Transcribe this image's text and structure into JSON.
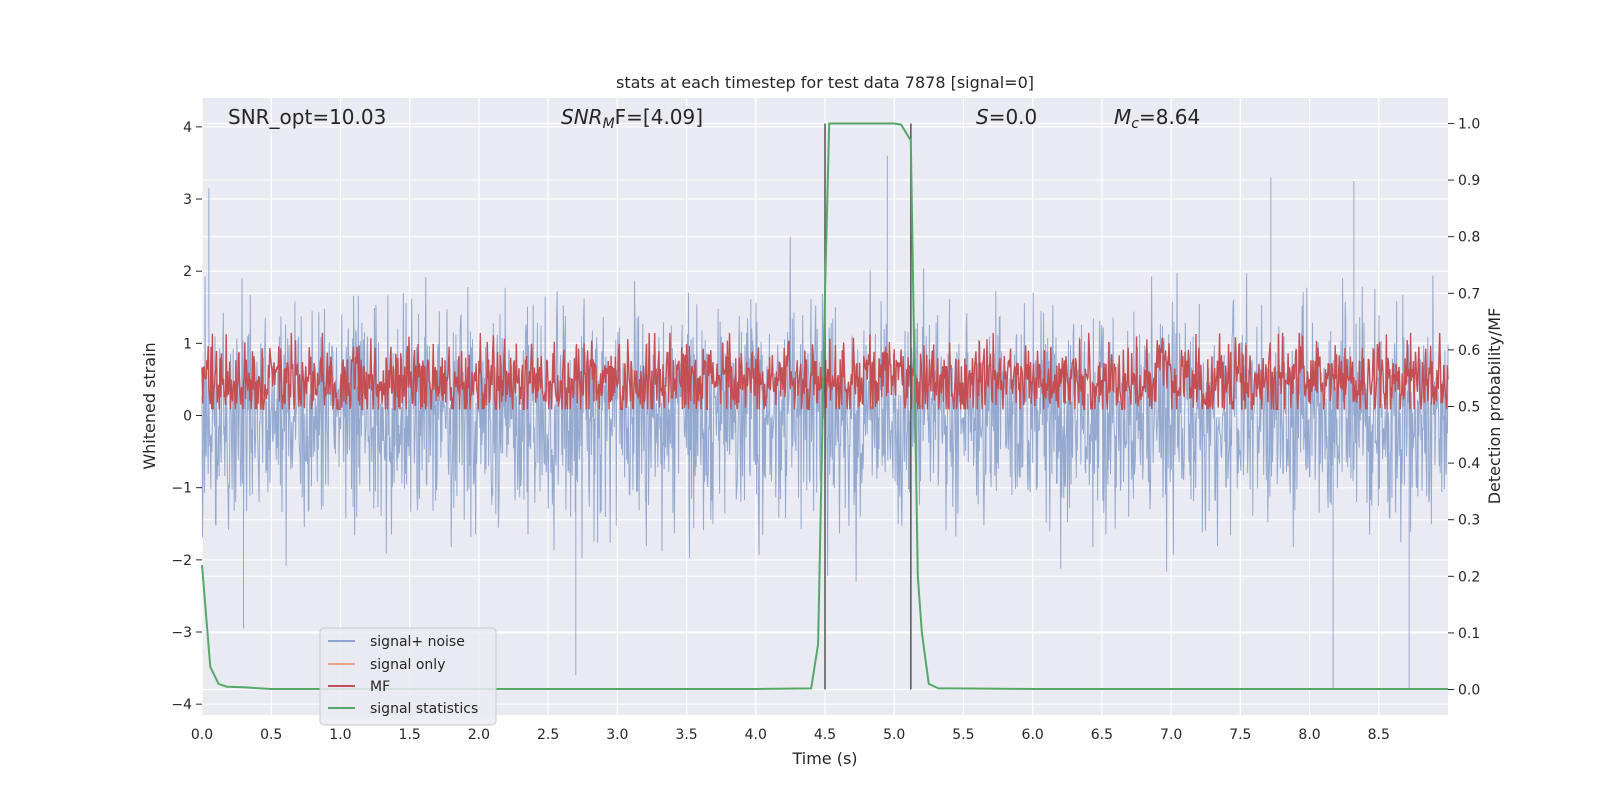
{
  "chart_data": {
    "type": "line",
    "title": "stats at each timestep for test data 7878 [signal=0]",
    "xlabel": "Time (s)",
    "ylabel_left": "Whitened strain",
    "ylabel_right": "Detection probability/MF",
    "xlim": [
      0.0,
      9.0
    ],
    "ylim_left": [
      -4.15,
      4.4
    ],
    "ylim_right": [
      -0.045,
      1.045
    ],
    "xticks": [
      "0.0",
      "0.5",
      "1.0",
      "1.5",
      "2.0",
      "2.5",
      "3.0",
      "3.5",
      "4.0",
      "4.5",
      "5.0",
      "5.5",
      "6.0",
      "6.5",
      "7.0",
      "7.5",
      "8.0",
      "8.5"
    ],
    "yticks_left": [
      "−4",
      "−3",
      "−2",
      "−1",
      "0",
      "1",
      "2",
      "3",
      "4"
    ],
    "yticks_right": [
      "0.0",
      "0.1",
      "0.2",
      "0.3",
      "0.4",
      "0.5",
      "0.6",
      "0.7",
      "0.8",
      "0.9",
      "1.0"
    ],
    "grid": true,
    "legend_position": "lower-left",
    "annotations": {
      "snr_opt": "SNR_opt=10.03",
      "snr_mf_sym": "SNR",
      "snr_mf_sub": "M",
      "snr_mf_rest": "F=[4.09]",
      "s_sym": "S",
      "s_rest": "=0.0",
      "mc_sym": "M",
      "mc_sub": "c",
      "mc_rest": "=8.64"
    },
    "vertical_lines_x": [
      4.5,
      5.12
    ],
    "series": [
      {
        "name": "signal+ noise",
        "axis": "left",
        "color": "#8fa5ce",
        "style": "noise",
        "sigma": 0.75,
        "peaks": [
          [
            0.05,
            3.15
          ],
          [
            4.95,
            3.6
          ],
          [
            7.72,
            3.3
          ],
          [
            8.32,
            3.25
          ],
          [
            2.7,
            -3.6
          ],
          [
            8.17,
            -3.8
          ],
          [
            8.72,
            -3.8
          ],
          [
            0.3,
            -2.95
          ]
        ]
      },
      {
        "name": "signal only",
        "axis": "left",
        "color": "#e8a48a",
        "values": []
      },
      {
        "name": "MF",
        "axis": "right",
        "color": "#c44e52",
        "style": "noise",
        "mean": 0.545,
        "spread": 0.035
      },
      {
        "name": "signal statistics",
        "axis": "right",
        "color": "#55a868",
        "x": [
          0.0,
          0.06,
          0.12,
          0.18,
          0.3,
          0.5,
          1.0,
          2.0,
          3.0,
          4.0,
          4.4,
          4.45,
          4.5,
          4.53,
          4.56,
          4.6,
          5.0,
          5.05,
          5.12,
          5.17,
          5.2,
          5.25,
          5.32,
          5.4,
          6.0,
          7.0,
          8.0,
          9.0
        ],
        "y": [
          0.22,
          0.04,
          0.01,
          0.005,
          0.004,
          0.001,
          0.001,
          0.001,
          0.001,
          0.001,
          0.002,
          0.08,
          0.7,
          1.0,
          1.0,
          1.0,
          1.0,
          0.998,
          0.97,
          0.2,
          0.1,
          0.01,
          0.002,
          0.002,
          0.001,
          0.001,
          0.001,
          0.001
        ]
      }
    ]
  }
}
